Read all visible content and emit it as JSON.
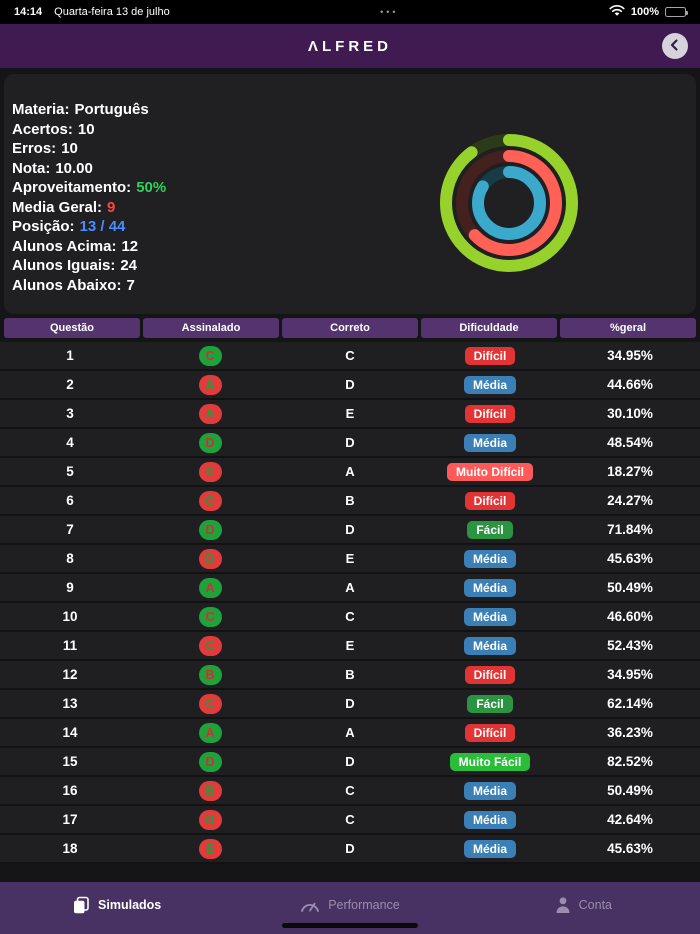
{
  "status_bar": {
    "time": "14:14",
    "date": "Quarta-feira 13 de julho",
    "center": "•••",
    "battery": "100%"
  },
  "header": {
    "title": "ΛLFRED"
  },
  "stats": {
    "lines": [
      {
        "label": "Materia:",
        "value": "Português",
        "color": "white"
      },
      {
        "label": "Acertos:",
        "value": "10",
        "color": "white"
      },
      {
        "label": "Erros:",
        "value": "10",
        "color": "white"
      },
      {
        "label": "Nota:",
        "value": "10.00",
        "color": "white"
      },
      {
        "label": "Aproveitamento:",
        "value": "50%",
        "color": "green"
      },
      {
        "label": "Media Geral:",
        "value": "9",
        "color": "red"
      },
      {
        "label": "Posição:",
        "value": "13 / 44",
        "color": "blue"
      },
      {
        "label": "Alunos Acima:",
        "value": "12",
        "color": "white"
      },
      {
        "label": "Alunos Iguais:",
        "value": "24",
        "color": "white"
      },
      {
        "label": "Alunos Abaixo:",
        "value": "7",
        "color": "white"
      }
    ],
    "value_colors": {
      "white": "#ffffff",
      "green": "#30d158",
      "red": "#ff453a",
      "blue": "#4a8cff"
    }
  },
  "rings": {
    "items": [
      {
        "name": "outer-ring",
        "color": "#96d22b",
        "track": "#2b3a17",
        "pct": 90
      },
      {
        "name": "middle-ring",
        "color": "#ff6157",
        "track": "#44201f",
        "pct": 63
      },
      {
        "name": "inner-ring",
        "color": "#3aa9cb",
        "track": "#173c46",
        "pct": 84
      }
    ]
  },
  "table": {
    "headers": [
      "Questão",
      "Assinalado",
      "Correto",
      "Dificuldade",
      "%geral"
    ],
    "difficulty_colors": {
      "Difícil": "#e23434",
      "Média": "#3b7fb7",
      "Muito Difícil": "#ff5a5a",
      "Fácil": "#2a9440",
      "Muito Fácil": "#29bd3a"
    },
    "answer_badge": {
      "correct_bg": "#1fa23c",
      "correct_text": "#d03030",
      "wrong_bg": "#e23b3b",
      "wrong_text": "#1f9e3c"
    },
    "rows": [
      {
        "questao": "1",
        "assinalado": "C",
        "correct": true,
        "correto": "C",
        "dificuldade": "Difícil",
        "geral": "34.95%"
      },
      {
        "questao": "2",
        "assinalado": "A",
        "correct": false,
        "correto": "D",
        "dificuldade": "Média",
        "geral": "44.66%"
      },
      {
        "questao": "3",
        "assinalado": "A",
        "correct": false,
        "correto": "E",
        "dificuldade": "Difícil",
        "geral": "30.10%"
      },
      {
        "questao": "4",
        "assinalado": "D",
        "correct": true,
        "correto": "D",
        "dificuldade": "Média",
        "geral": "48.54%"
      },
      {
        "questao": "5",
        "assinalado": "E",
        "correct": false,
        "correto": "A",
        "dificuldade": "Muito Difícil",
        "geral": "18.27%"
      },
      {
        "questao": "6",
        "assinalado": "C",
        "correct": false,
        "correto": "B",
        "dificuldade": "Difícil",
        "geral": "24.27%"
      },
      {
        "questao": "7",
        "assinalado": "D",
        "correct": true,
        "correto": "D",
        "dificuldade": "Fácil",
        "geral": "71.84%"
      },
      {
        "questao": "8",
        "assinalado": "D",
        "correct": false,
        "correto": "E",
        "dificuldade": "Média",
        "geral": "45.63%"
      },
      {
        "questao": "9",
        "assinalado": "A",
        "correct": true,
        "correto": "A",
        "dificuldade": "Média",
        "geral": "50.49%"
      },
      {
        "questao": "10",
        "assinalado": "C",
        "correct": true,
        "correto": "C",
        "dificuldade": "Média",
        "geral": "46.60%"
      },
      {
        "questao": "11",
        "assinalado": "C",
        "correct": false,
        "correto": "E",
        "dificuldade": "Média",
        "geral": "52.43%"
      },
      {
        "questao": "12",
        "assinalado": "B",
        "correct": true,
        "correto": "B",
        "dificuldade": "Difícil",
        "geral": "34.95%"
      },
      {
        "questao": "13",
        "assinalado": "C",
        "correct": false,
        "correto": "D",
        "dificuldade": "Fácil",
        "geral": "62.14%"
      },
      {
        "questao": "14",
        "assinalado": "A",
        "correct": true,
        "correto": "A",
        "dificuldade": "Difícil",
        "geral": "36.23%"
      },
      {
        "questao": "15",
        "assinalado": "D",
        "correct": true,
        "correto": "D",
        "dificuldade": "Muito Fácil",
        "geral": "82.52%"
      },
      {
        "questao": "16",
        "assinalado": "B",
        "correct": false,
        "correto": "C",
        "dificuldade": "Média",
        "geral": "50.49%"
      },
      {
        "questao": "17",
        "assinalado": "B",
        "correct": false,
        "correto": "C",
        "dificuldade": "Média",
        "geral": "42.64%"
      },
      {
        "questao": "18",
        "assinalado": "E",
        "correct": false,
        "correto": "D",
        "dificuldade": "Média",
        "geral": "45.63%"
      }
    ]
  },
  "tab_bar": {
    "items": [
      {
        "label": "Simulados",
        "icon": "copy-icon",
        "active": true
      },
      {
        "label": "Performance",
        "icon": "gauge-icon",
        "active": false
      },
      {
        "label": "Conta",
        "icon": "person-icon",
        "active": false
      }
    ]
  }
}
